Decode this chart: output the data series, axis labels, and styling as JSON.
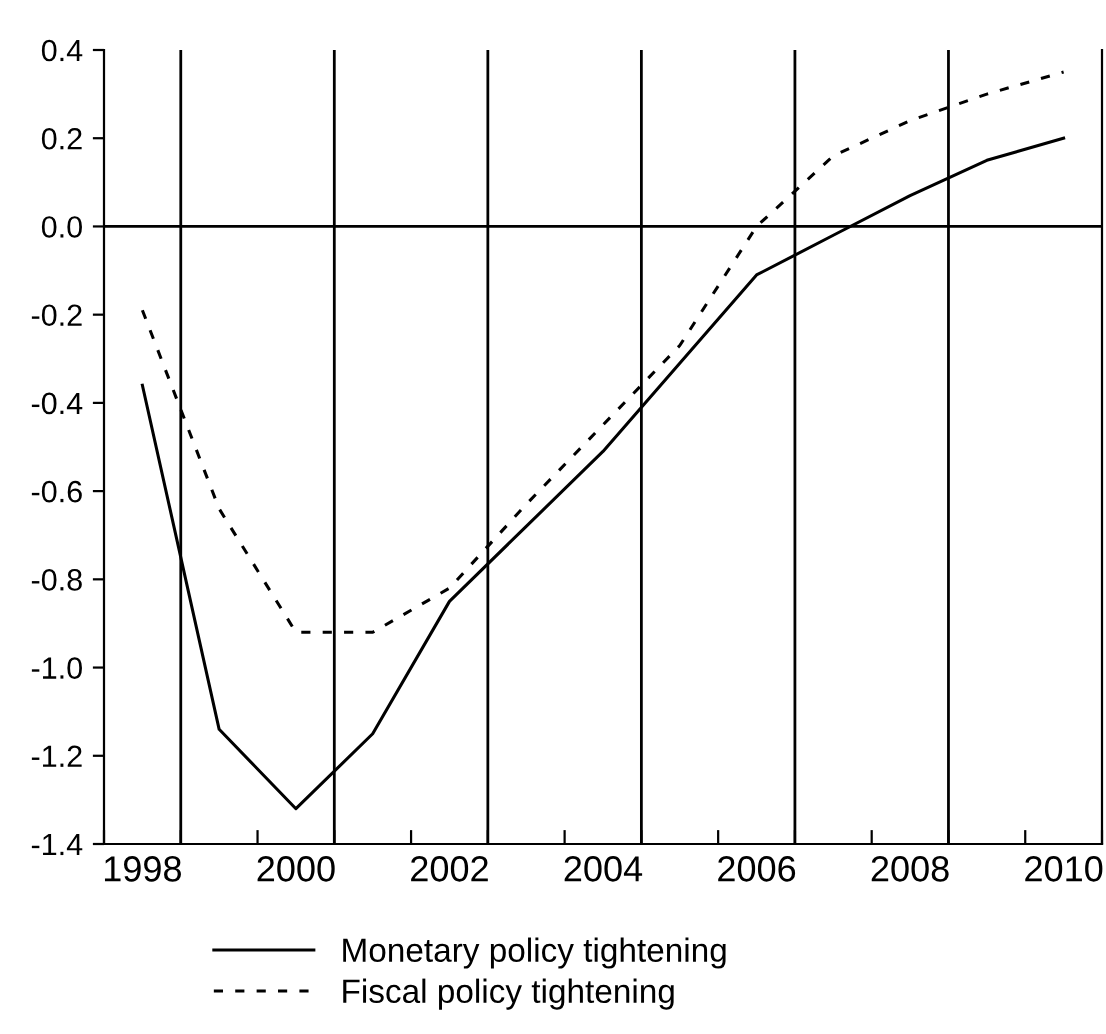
{
  "chart_data": {
    "type": "line",
    "categories": [
      "1998",
      null,
      "2000",
      null,
      "2002",
      null,
      "2004",
      null,
      "2006",
      null,
      "2008",
      null,
      "2010"
    ],
    "series": [
      {
        "name": "Monetary policy tightening",
        "color": "#000000",
        "line_style": "solid",
        "values": [
          -0.36,
          -1.14,
          -1.32,
          -1.15,
          -0.85,
          -0.68,
          -0.51,
          -0.31,
          -0.11,
          -0.02,
          0.07,
          0.15,
          0.2
        ]
      },
      {
        "name": "Fiscal policy tightening",
        "color": "#000000",
        "line_style": "dotted",
        "values": [
          -0.19,
          -0.64,
          -0.92,
          -0.92,
          -0.82,
          -0.63,
          -0.45,
          -0.27,
          0.0,
          0.16,
          0.24,
          0.3,
          0.35
        ]
      }
    ],
    "ylim": [
      -1.4,
      0.4
    ],
    "yticks": [
      -1.4,
      -1.2,
      {
        "value": -1,
        "label": "-1.0"
      },
      -0.8,
      -0.6,
      -0.4,
      -0.2,
      {
        "value": 0,
        "label": "0.0"
      },
      0.2,
      0.4
    ],
    "ref_lines": [
      {
        "axis": "y",
        "value": 0,
        "color": "#000000"
      }
    ],
    "grid": "x",
    "legend": "bottom",
    "marker": "none"
  }
}
